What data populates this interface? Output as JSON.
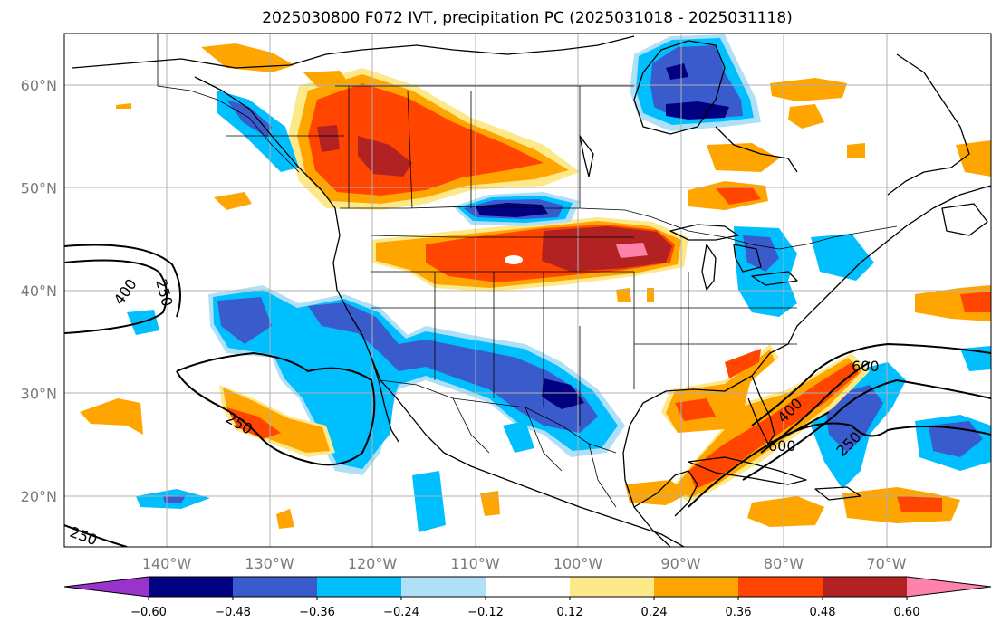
{
  "title": "2025030800 F072 IVT, precipitation PC (2025031018 - 2025031118)",
  "lat_labels": [
    {
      "text": "60°N",
      "lat": 60
    },
    {
      "text": "50°N",
      "lat": 50
    },
    {
      "text": "40°N",
      "lat": 40
    },
    {
      "text": "30°N",
      "lat": 30
    },
    {
      "text": "20°N",
      "lat": 20
    }
  ],
  "lon_labels": [
    {
      "text": "140°W",
      "lon": -140
    },
    {
      "text": "130°W",
      "lon": -130
    },
    {
      "text": "120°W",
      "lon": -120
    },
    {
      "text": "110°W",
      "lon": -110
    },
    {
      "text": "100°W",
      "lon": -100
    },
    {
      "text": "90°W",
      "lon": -90
    },
    {
      "text": "80°W",
      "lon": -80
    },
    {
      "text": "70°W",
      "lon": -70
    }
  ],
  "colorbar": {
    "colors": [
      "#9933cc",
      "#000080",
      "#3a5bcc",
      "#00bfff",
      "#b0e0f8",
      "#ffffff",
      "#fde98a",
      "#ffa500",
      "#ff4500",
      "#b22222",
      "#ff82ab"
    ],
    "labels": [
      "−0.60",
      "−0.48",
      "−0.36",
      "−0.24",
      "−0.12",
      "0.12",
      "0.24",
      "0.36",
      "0.48",
      "0.60"
    ]
  },
  "contour_labels": [
    "250",
    "400",
    "250",
    "250",
    "600",
    "400",
    "600",
    "250"
  ]
}
